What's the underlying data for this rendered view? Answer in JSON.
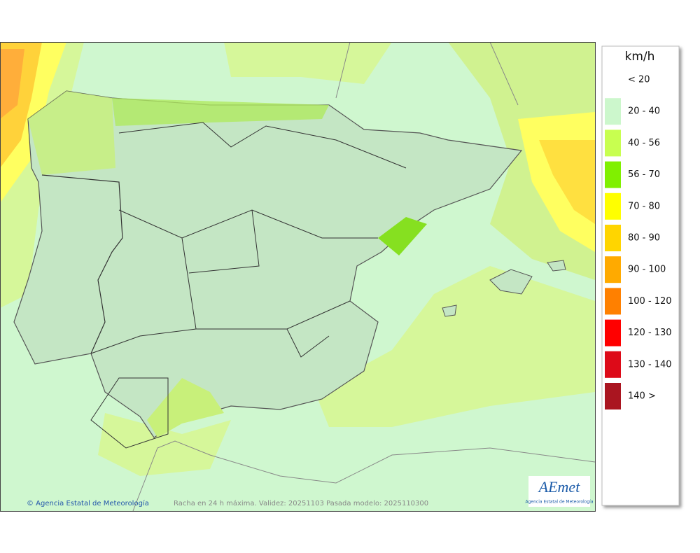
{
  "map": {
    "copyright": "© Agencia Estatal de Meteorología",
    "caption": "Racha en 24 h máxima. Validez: 20251103 Pasada modelo: 2025110300",
    "logo": {
      "name": "AEmet",
      "subtitle": "Agencia Estatal de Meteorología"
    }
  },
  "legend": {
    "title": "km/h",
    "items": [
      {
        "label": "< 20"
      },
      {
        "label": "20 - 40",
        "color": "#ccf7cc"
      },
      {
        "label": "40 - 56",
        "color": "#c8ff50"
      },
      {
        "label": "56 - 70",
        "color": "#80f000"
      },
      {
        "label": "70 - 80",
        "color": "#ffff00"
      },
      {
        "label": "80 - 90",
        "color": "#ffd500"
      },
      {
        "label": "90 - 100",
        "color": "#ffaa00"
      },
      {
        "label": "100 - 120",
        "color": "#ff8000"
      },
      {
        "label": "120 - 130",
        "color": "#ff0000"
      },
      {
        "label": "130 - 140",
        "color": "#dd0a18"
      },
      {
        "label": "140 >",
        "color": "#aa1520"
      }
    ]
  }
}
